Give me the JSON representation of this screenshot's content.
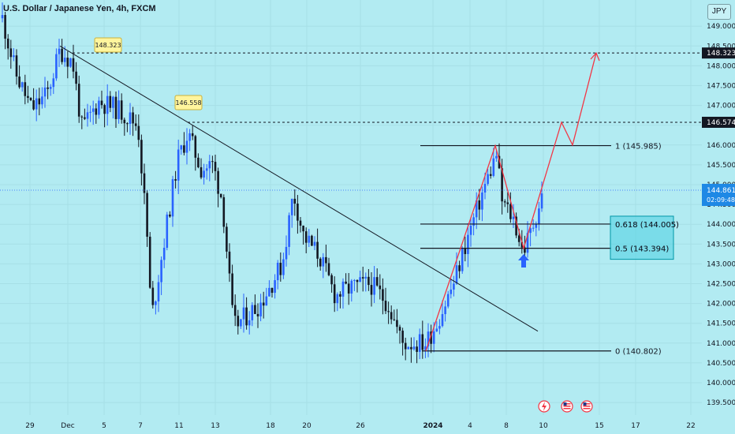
{
  "header": {
    "title": "U.S. Dollar / Japanese Yen, 4h, FXCM"
  },
  "price_axis": {
    "currency_label": "JPY",
    "ticks": [
      "149.000",
      "148.500",
      "148.000",
      "147.500",
      "147.000",
      "146.500",
      "146.000",
      "145.500",
      "145.000",
      "144.500",
      "144.000",
      "143.500",
      "143.000",
      "142.500",
      "142.000",
      "141.500",
      "141.000",
      "140.500",
      "140.000",
      "139.500"
    ],
    "badges": [
      {
        "label": "148.323",
        "price": 148.323,
        "style": "dark"
      },
      {
        "label": "146.574",
        "price": 146.574,
        "style": "dark"
      },
      {
        "label": "144.861",
        "sublabel": "02:09:48",
        "price": 144.861,
        "style": "blue"
      }
    ]
  },
  "time_axis": {
    "labels": [
      {
        "text": "29",
        "bold": false
      },
      {
        "text": "Dec",
        "bold": false
      },
      {
        "text": "5",
        "bold": false
      },
      {
        "text": "7",
        "bold": false
      },
      {
        "text": "11",
        "bold": false
      },
      {
        "text": "13",
        "bold": false
      },
      {
        "text": "18",
        "bold": false
      },
      {
        "text": "20",
        "bold": false
      },
      {
        "text": "26",
        "bold": false
      },
      {
        "text": "2024",
        "bold": true
      },
      {
        "text": "4",
        "bold": false
      },
      {
        "text": "8",
        "bold": false
      },
      {
        "text": "10",
        "bold": false
      },
      {
        "text": "15",
        "bold": false
      },
      {
        "text": "17",
        "bold": false
      },
      {
        "text": "22",
        "bold": false
      }
    ]
  },
  "annotations": {
    "price_callouts": [
      {
        "label": "148.323",
        "price": 148.323
      },
      {
        "label": "146.558",
        "price": 146.558
      }
    ],
    "fib_levels": [
      {
        "label": "1 (145.985)",
        "price": 145.985,
        "highlight": false
      },
      {
        "label": "0.618 (144.005)",
        "price": 144.005,
        "highlight": true
      },
      {
        "label": "0.5 (143.394)",
        "price": 143.394,
        "highlight": true
      },
      {
        "label": "0 (140.802)",
        "price": 140.802,
        "highlight": false
      }
    ],
    "events": [
      {
        "icon": "lightning-icon"
      },
      {
        "icon": "us-flag-icon"
      },
      {
        "icon": "us-flag-icon"
      }
    ]
  },
  "colors": {
    "background": "#b2ebf2",
    "bull": "#2962ff",
    "bear": "#131722",
    "projection": "#f23645",
    "fib_box": "#4dd0e1",
    "callout_bg": "#fff59d"
  },
  "chart_data": {
    "type": "candlestick",
    "symbol": "U.S. Dollar / Japanese Yen",
    "interval": "4h",
    "source": "FXCM",
    "ylim": [
      139.3,
      149.6
    ],
    "last_price": 144.861,
    "key_points": [
      {
        "date": "Dec 1",
        "price": 148.323
      },
      {
        "date": "Dec 7",
        "price": 141.6
      },
      {
        "date": "Dec 11",
        "price": 146.558
      },
      {
        "date": "Dec 14",
        "price": 141.1
      },
      {
        "date": "Dec 19",
        "price": 145.0
      },
      {
        "date": "Dec 28",
        "price": 140.802
      },
      {
        "date": "Jan 5",
        "price": 145.985
      },
      {
        "date": "Jan 9",
        "price": 143.394
      },
      {
        "date": "Jan 10",
        "price": 144.861
      }
    ],
    "trendline": [
      {
        "price": 148.5
      },
      {
        "price": 141.3
      }
    ],
    "projection": [
      {
        "price": 143.394
      },
      {
        "price": 146.574
      },
      {
        "price": 146.0
      },
      {
        "price": 148.323
      }
    ]
  }
}
